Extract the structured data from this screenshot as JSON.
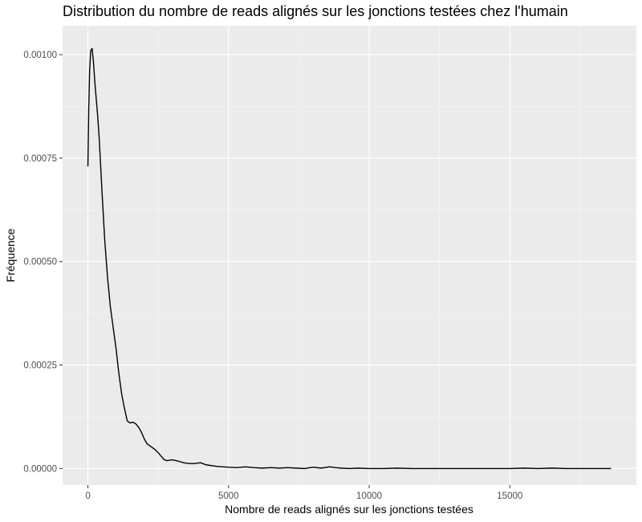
{
  "chart_data": {
    "type": "line",
    "title": "Distribution du nombre de reads alignés sur les jonctions testées chez l'humain",
    "xlabel": "Nombre de reads alignés sur les jonctions testées",
    "ylabel": "Fréquence",
    "xlim": [
      -900,
      19500
    ],
    "ylim": [
      -4e-05,
      0.00107
    ],
    "x_ticks": [
      0,
      5000,
      10000,
      15000
    ],
    "x_tick_labels": [
      "0",
      "5000",
      "10000",
      "15000"
    ],
    "x_minor_ticks": [
      2500,
      7500,
      12500,
      17500
    ],
    "y_ticks": [
      0,
      0.00025,
      0.0005,
      0.00075,
      0.001
    ],
    "y_tick_labels": [
      "0.00000",
      "0.00025",
      "0.00050",
      "0.00075",
      "0.00100"
    ],
    "y_minor_ticks": [
      0.000125,
      0.000375,
      0.000625,
      0.000875
    ],
    "grid": true,
    "legend": "none",
    "colors": {
      "panel_background": "#ebebeb",
      "grid_major": "#ffffff",
      "grid_minor": "#f5f5f5",
      "line": "#000000",
      "tick_text": "#4d4d4d",
      "tick_mark": "#333333"
    },
    "series": [
      {
        "x": [
          0,
          30,
          60,
          100,
          150,
          200,
          250,
          300,
          350,
          400,
          500,
          600,
          700,
          800,
          900,
          1000,
          1100,
          1200,
          1300,
          1400,
          1500,
          1600,
          1700,
          1800,
          1900,
          2000,
          2100,
          2200,
          2300,
          2400,
          2500,
          2600,
          2700,
          2800,
          2900,
          3000,
          3200,
          3400,
          3600,
          3800,
          4000,
          4200,
          4400,
          4600,
          4800,
          5000,
          5300,
          5600,
          5900,
          6200,
          6500,
          6800,
          7100,
          7400,
          7700,
          8000,
          8300,
          8600,
          8800,
          9000,
          9300,
          9600,
          10000,
          10500,
          11000,
          11500,
          12000,
          12500,
          13000,
          13500,
          14000,
          14500,
          15000,
          15500,
          16000,
          16500,
          17000,
          17500,
          18000,
          18600
        ],
        "y": [
          0.00073,
          0.00087,
          0.00096,
          0.00101,
          0.001015,
          0.00098,
          0.00093,
          0.00089,
          0.00085,
          0.0008,
          0.00067,
          0.00055,
          0.00046,
          0.00039,
          0.00034,
          0.00029,
          0.00023,
          0.00018,
          0.000145,
          0.000115,
          0.00011,
          0.000112,
          0.000108,
          0.0001,
          8.8e-05,
          7.2e-05,
          6e-05,
          5.5e-05,
          5e-05,
          4.5e-05,
          3.8e-05,
          3e-05,
          2.2e-05,
          1.9e-05,
          2e-05,
          2.1e-05,
          1.8e-05,
          1.4e-05,
          1.2e-05,
          1.2e-05,
          1.4e-05,
          9e-06,
          7e-06,
          5e-06,
          4e-06,
          3e-06,
          2e-06,
          4e-06,
          2e-06,
          1e-06,
          2e-06,
          1e-06,
          2e-06,
          1e-06,
          0.0,
          3e-06,
          1e-06,
          4e-06,
          2e-06,
          1e-06,
          0.0,
          1e-06,
          0.0,
          0.0,
          1e-06,
          0.0,
          0.0,
          0.0,
          0.0,
          0.0,
          0.0,
          0.0,
          0.0,
          1e-06,
          0.0,
          1e-06,
          0.0,
          0.0,
          0.0,
          0.0
        ]
      }
    ]
  }
}
